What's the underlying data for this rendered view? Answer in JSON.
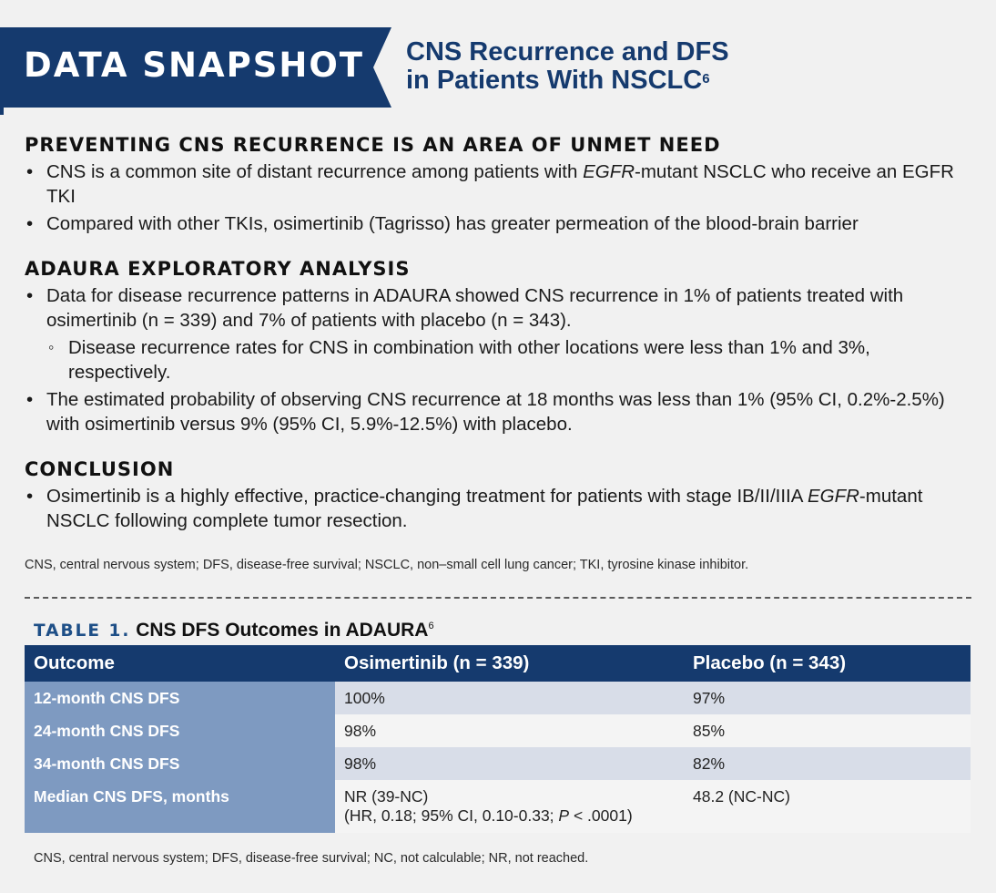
{
  "header": {
    "banner": "DATA SNAPSHOT",
    "title_line1": "CNS Recurrence and DFS",
    "title_line2": "in Patients With NSCLC",
    "title_sup": "6"
  },
  "section1": {
    "heading": "PREVENTING CNS RECURRENCE IS AN AREA OF UNMET NEED",
    "b1_pre": "CNS is a common site of distant recurrence among patients with ",
    "b1_italic": "EGFR",
    "b1_post": "-mutant NSCLC who receive an EGFR TKI",
    "b2": "Compared with other TKIs, osimertinib (Tagrisso) has greater permeation of the blood-brain barrier"
  },
  "section2": {
    "heading": "ADAURA EXPLORATORY ANALYSIS",
    "b1": "Data for disease recurrence patterns in ADAURA showed CNS recurrence in 1% of patients treated with osimertinib (n = 339) and 7% of patients with placebo (n = 343).",
    "b1_sub": "Disease recurrence rates for CNS in combination with other locations were less than 1% and 3%, respectively.",
    "b2": "The estimated probability of observing CNS recurrence at 18 months was less than 1% (95% CI, 0.2%-2.5%) with osimertinib versus 9% (95% CI, 5.9%-12.5%) with placebo."
  },
  "section3": {
    "heading": "CONCLUSION",
    "b1_pre": "Osimertinib is a highly effective, practice-changing treatment for patients with stage IB/II/IIIA ",
    "b1_italic": "EGFR",
    "b1_post": "-mutant NSCLC following complete tumor resection."
  },
  "footnote1": "CNS, central nervous system; DFS, disease-free survival; NSCLC, non–small cell lung cancer; TKI, tyrosine kinase inhibitor.",
  "table": {
    "label": "TABLE 1.",
    "title": "CNS DFS Outcomes in ADAURA",
    "title_sup": "6",
    "headers": [
      "Outcome",
      "Osimertinib (n = 339)",
      "Placebo (n = 343)"
    ],
    "rows": [
      {
        "outcome": "12-month CNS DFS",
        "osimertinib": "100%",
        "placebo": "97%"
      },
      {
        "outcome": "24-month CNS DFS",
        "osimertinib": "98%",
        "placebo": "85%"
      },
      {
        "outcome": "34-month CNS DFS",
        "osimertinib": "98%",
        "placebo": "82%"
      }
    ],
    "last_row": {
      "outcome": "Median CNS DFS, months",
      "osimertinib_line1": "NR (39-NC)",
      "osimertinib_line2_pre": "(HR, 0.18; 95% CI, 0.10-0.33; ",
      "osimertinib_line2_p": "P",
      "osimertinib_line2_post": " < .0001)",
      "placebo": "48.2 (NC-NC)"
    }
  },
  "footnote2": "CNS, central nervous system; DFS, disease-free survival; NC, not calculable; NR, not reached."
}
